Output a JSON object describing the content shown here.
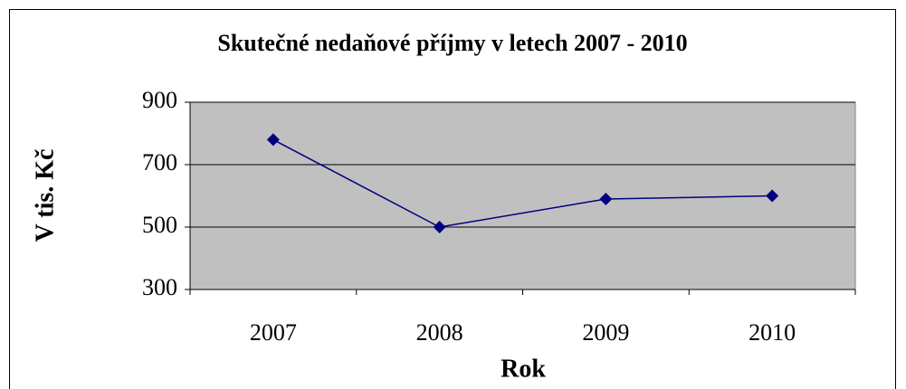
{
  "chart_data": {
    "type": "line",
    "title": "Skutečné nedaňové příjmy v letech 2007 - 2010",
    "x_label": "Rok",
    "y_label": "V tis. Kč",
    "categories": [
      "2007",
      "2008",
      "2009",
      "2010"
    ],
    "values": [
      780,
      500,
      590,
      600
    ],
    "color": "#000080",
    "ylim": [
      300,
      900
    ],
    "yticks": [
      300,
      500,
      700,
      900
    ],
    "grid": true,
    "plot_background": "#c0c0c0"
  }
}
